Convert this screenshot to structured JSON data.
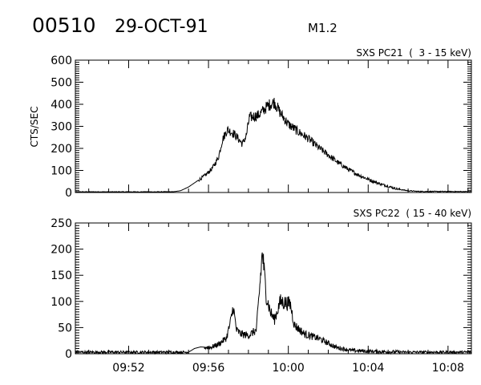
{
  "header": {
    "event_id": "00510",
    "date": "29-OCT-91",
    "flare_class": "M1.2"
  },
  "chart_data": [
    {
      "type": "line",
      "title": "SXS PC21  (  3 - 15 keV)",
      "ylabel": "CTS/SEC",
      "xlabel": "",
      "x_units": "minutes after 09:00 UT",
      "xlim": [
        49.33,
        69.17
      ],
      "ylim": [
        0,
        600
      ],
      "yticks": [
        "0",
        "100",
        "200",
        "300",
        "400",
        "500",
        "600"
      ],
      "ytick_values": [
        0,
        100,
        200,
        300,
        400,
        500,
        600
      ],
      "x": [
        49.33,
        54.2,
        54.6,
        55.0,
        55.4,
        55.8,
        56.2,
        56.5,
        56.7,
        56.95,
        57.3,
        57.7,
        57.9,
        58.05,
        58.5,
        59.0,
        59.3,
        59.6,
        60.0,
        60.5,
        61.0,
        61.5,
        62.0,
        62.5,
        63.0,
        63.5,
        64.0,
        64.5,
        65.0,
        65.5,
        66.0,
        66.5,
        69.17
      ],
      "values": [
        3,
        3,
        8,
        25,
        50,
        75,
        110,
        160,
        240,
        285,
        265,
        220,
        260,
        340,
        350,
        395,
        410,
        360,
        310,
        275,
        245,
        205,
        170,
        135,
        105,
        80,
        60,
        42,
        28,
        15,
        8,
        5,
        4
      ]
    },
    {
      "type": "line",
      "title": "SXS PC22  ( 15 - 40 keV)",
      "ylabel": "",
      "xlabel": "",
      "x_units": "minutes after 09:00 UT",
      "xlim": [
        49.33,
        69.17
      ],
      "ylim": [
        0,
        250
      ],
      "yticks": [
        "0",
        "50",
        "100",
        "150",
        "200",
        "250"
      ],
      "ytick_values": [
        0,
        50,
        100,
        150,
        200,
        250
      ],
      "xticks": [
        "09:52",
        "09:56",
        "10:00",
        "10:04",
        "10:08"
      ],
      "xtick_values": [
        52,
        56,
        60,
        64,
        68
      ],
      "x": [
        49.33,
        55.0,
        55.3,
        55.6,
        56.1,
        56.5,
        56.9,
        57.1,
        57.24,
        57.4,
        57.6,
        58.0,
        58.4,
        58.55,
        58.7,
        58.9,
        59.1,
        59.3,
        59.6,
        60.1,
        60.3,
        60.8,
        61.6,
        62.4,
        63.2,
        64.5,
        65.9,
        69.17
      ],
      "values": [
        3,
        3,
        10,
        13,
        12,
        18,
        30,
        60,
        90,
        45,
        38,
        35,
        45,
        120,
        195,
        110,
        80,
        65,
        100,
        95,
        55,
        38,
        28,
        12,
        6,
        4,
        3,
        3
      ]
    }
  ]
}
